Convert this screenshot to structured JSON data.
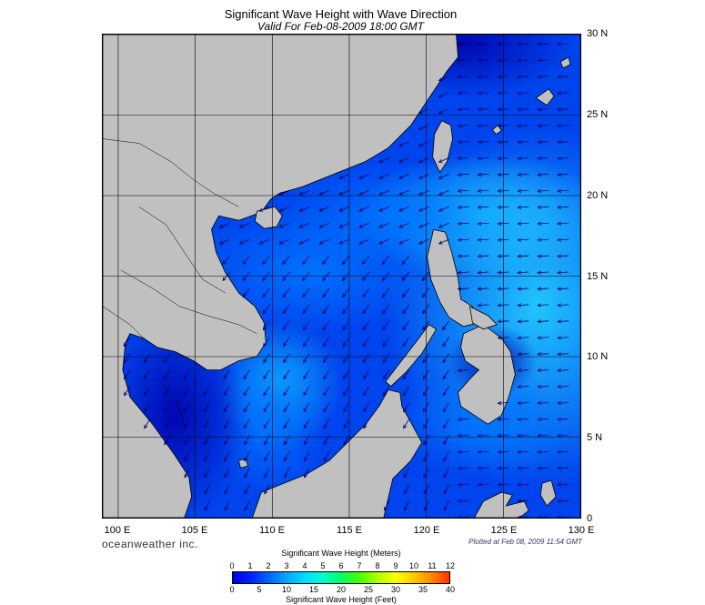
{
  "header": {
    "title": "Significant Wave Height with Wave Direction",
    "subtitle": "Valid For Feb-08-2009 18:00 GMT"
  },
  "map": {
    "lat_labels": [
      "30 N",
      "25 N",
      "20 N",
      "15 N",
      "10 N",
      "5 N",
      "0"
    ],
    "lon_labels": [
      "100 E",
      "105 E",
      "110 E",
      "115 E",
      "120 E",
      "125 E",
      "130 E"
    ],
    "lon_range": [
      99,
      130
    ],
    "lat_range": [
      0,
      30
    ],
    "grid_lat": [
      0,
      5,
      10,
      15,
      20,
      25,
      30
    ],
    "grid_lon": [
      100,
      105,
      110,
      115,
      120,
      125,
      130
    ],
    "land_color": "#c0c0c0",
    "grid_color": "#000000",
    "arrow_color": "#000066"
  },
  "footer": {
    "brand": "oceanweather inc.",
    "plotted": "Plotted at Feb 08, 2009 11:54 GMT"
  },
  "legend": {
    "title_meters": "Significant Wave Height (Meters)",
    "title_feet": "Significant Wave Height (Feet)",
    "meter_ticks": [
      "0",
      "1",
      "2",
      "3",
      "4",
      "5",
      "6",
      "7",
      "8",
      "9",
      "10",
      "11",
      "12"
    ],
    "feet_ticks": [
      "0",
      "5",
      "10",
      "15",
      "20",
      "25",
      "30",
      "35",
      "40"
    ],
    "colors": [
      "#0000dd",
      "#0022ff",
      "#0066ff",
      "#00aaff",
      "#00ddff",
      "#00ffcc",
      "#00ff66",
      "#44ff00",
      "#aaff00",
      "#ffff00",
      "#ffcc00",
      "#ff8800",
      "#ff3300"
    ]
  }
}
